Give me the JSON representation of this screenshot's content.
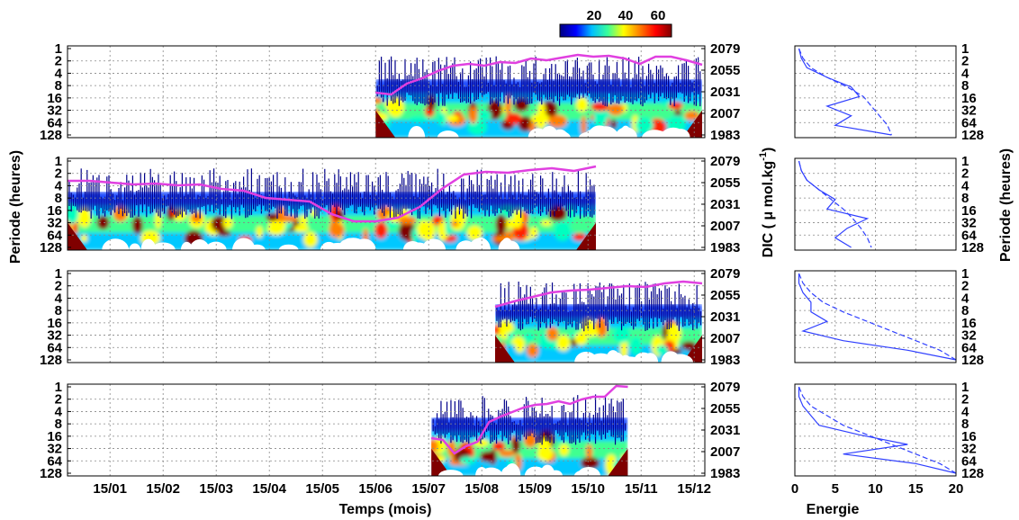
{
  "chart_data": {
    "type": "heatmap",
    "colorbar": {
      "ticks": [
        "20",
        "40",
        "60"
      ],
      "colors": [
        "#000080",
        "#0000ff",
        "#00bfff",
        "#39ff9a",
        "#ffff00",
        "#ff8000",
        "#ff0000",
        "#800000"
      ]
    },
    "xlabel": "Temps (mois)",
    "x_tick_labels": [
      "15/01",
      "15/02",
      "15/03",
      "15/04",
      "15/05",
      "15/06",
      "15/07",
      "15/08",
      "15/09",
      "15/10",
      "15/11",
      "15/12"
    ],
    "ylabel_left": "Periode (heures)",
    "ylabel_mid": "DIC ( μ mol.kg",
    "ylabel_mid_sup": "-1",
    "ylabel_mid_close": ")",
    "ylabel_right": "Periode (heures)",
    "period_ticks": [
      "1",
      "2",
      "4",
      "8",
      "16",
      "32",
      "64",
      "128"
    ],
    "dic_ticks": [
      "2079",
      "2055",
      "2031",
      "2007",
      "1983"
    ],
    "dic_range": [
      1983,
      2079
    ],
    "energy_xlabel": "Energie",
    "energy_ticks": [
      "0",
      "5",
      "10",
      "15",
      "20"
    ],
    "energy_range": [
      0,
      20
    ],
    "grid": true,
    "dic_line_color": "#e040e0",
    "spectrum_color": "#3040ff",
    "panels": [
      {
        "month_range": [
          5.8,
          11.95
        ],
        "dic": [
          2030,
          2028,
          2040,
          2046,
          2054,
          2060,
          2062,
          2060,
          2064,
          2063,
          2068,
          2066,
          2069,
          2072,
          2070,
          2071,
          2068,
          2062,
          2070,
          2070,
          2066,
          2061
        ],
        "energy_global": [
          0.5,
          0.8,
          1.5,
          4,
          7,
          8,
          4,
          7,
          5,
          12
        ],
        "energy_mean": [
          0.5,
          1,
          2,
          4,
          6.5,
          8.5,
          9.5,
          10.5,
          11.5,
          12
        ]
      },
      {
        "month_range": [
          0,
          9.95
        ],
        "dic": [
          2057,
          2057,
          2055,
          2053,
          2054,
          2052,
          2053,
          2048,
          2046,
          2038,
          2036,
          2034,
          2020,
          2012,
          2012,
          2016,
          2028,
          2048,
          2064,
          2067,
          2066,
          2069,
          2071,
          2068,
          2073
        ],
        "energy_global": [
          0.5,
          0.8,
          1.5,
          3,
          5,
          4,
          9,
          6.5,
          5,
          7
        ],
        "energy_mean": [
          0.5,
          0.8,
          1.5,
          3,
          4.5,
          6,
          7.2,
          8.2,
          9,
          9.5
        ]
      },
      {
        "month_range": [
          8.05,
          11.95
        ],
        "dic": [
          2042,
          2048,
          2053,
          2058,
          2060,
          2061,
          2063,
          2065,
          2064,
          2068,
          2070,
          2068
        ],
        "energy_global": [
          0.5,
          0.5,
          1,
          2,
          2,
          4,
          1,
          6,
          14,
          20
        ],
        "energy_mean": [
          0.5,
          1,
          2,
          3.5,
          6,
          9,
          12,
          15,
          18,
          20
        ]
      },
      {
        "month_range": [
          6.85,
          10.55
        ],
        "dic": [
          2022,
          2020,
          2005,
          2013,
          2018,
          2040,
          2046,
          2051,
          2056,
          2059,
          2060,
          2063,
          2060,
          2065,
          2068,
          2068,
          2080,
          2079
        ],
        "energy_global": [
          0.5,
          0.5,
          1,
          2,
          3,
          8,
          14,
          6,
          15,
          20
        ],
        "energy_mean": [
          0.5,
          1,
          2,
          4,
          6,
          9,
          12,
          15,
          18,
          20
        ]
      }
    ]
  }
}
